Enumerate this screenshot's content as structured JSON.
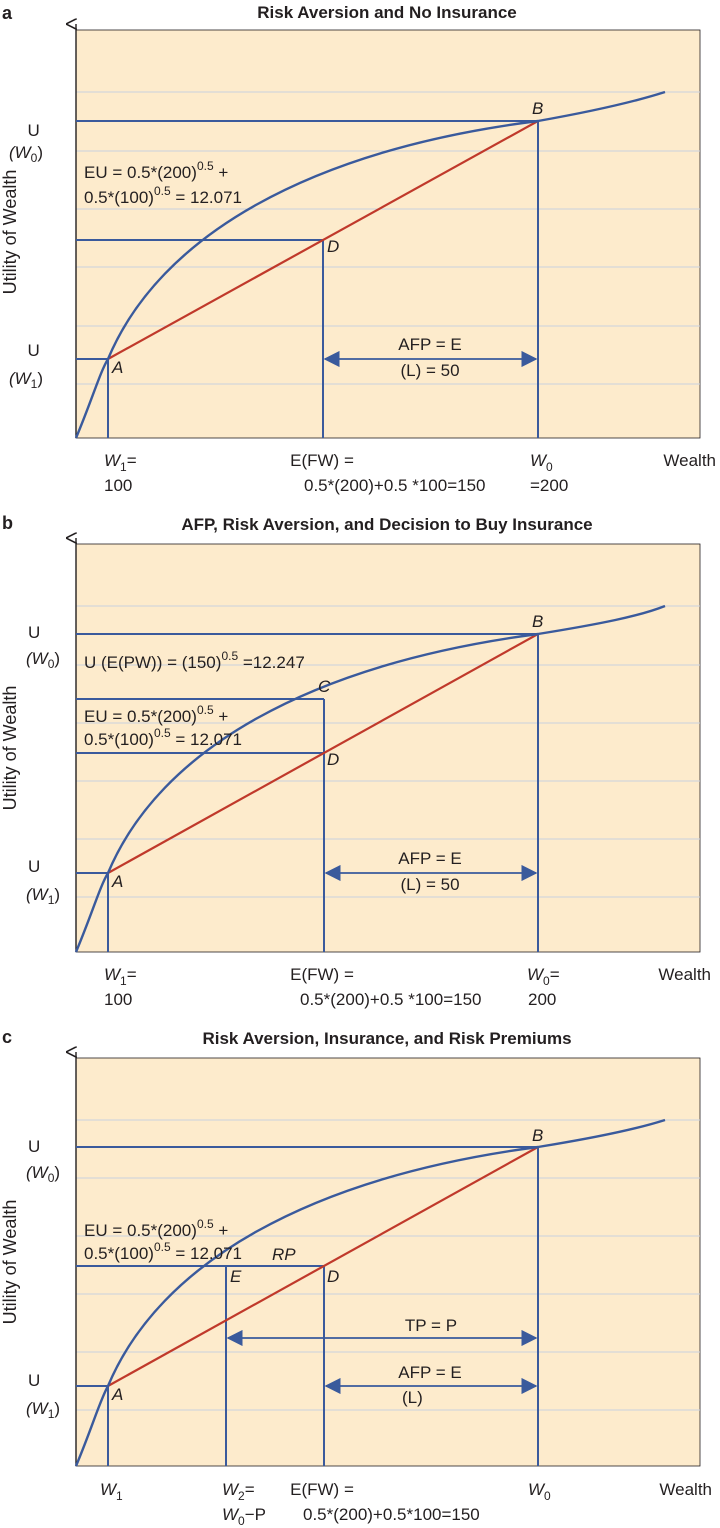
{
  "colors": {
    "background": "#fdebcc",
    "curve": "#3a5a9c",
    "chord": "#c0392b",
    "gridline": "#c9d0de",
    "axis": "#231f20"
  },
  "panels": [
    {
      "letter": "a",
      "title": "Risk Aversion and No Insurance",
      "y_axis_label": "Utility of Wealth",
      "x_axis_label": "Wealth",
      "u_w0": [
        "U",
        "(W",
        "0",
        ")"
      ],
      "u_w1": [
        "U",
        "(W",
        "1",
        ")"
      ],
      "eu_line1": [
        "EU = 0.5*(200)",
        "0.5",
        " +"
      ],
      "eu_line2": [
        "0.5*(100)",
        "0.5",
        " = 12.071"
      ],
      "points": {
        "A": "A",
        "B": "B",
        "D": "D"
      },
      "afp_line1": "AFP = E",
      "afp_line2": "(L) = 50",
      "x_w1_line1": [
        "W",
        "1",
        "="
      ],
      "x_w1_line2": "100",
      "x_efw_line1": "E(FW) =",
      "x_efw_line2": "0.5*(200)+0.5 *100=150",
      "x_w0_line1": [
        "W",
        "0"
      ],
      "x_w0_line2": "=200"
    },
    {
      "letter": "b",
      "title": "AFP, Risk Aversion, and Decision to Buy Insurance",
      "y_axis_label": "Utility of Wealth",
      "x_axis_label": "Wealth",
      "u_w0": [
        "U",
        "(W",
        "0",
        ")"
      ],
      "u_w1": [
        "U",
        "(W",
        "1",
        ")"
      ],
      "uefw": [
        "U (E(PW)) = (150)",
        "0.5",
        " =12.247"
      ],
      "eu_line1": [
        "EU = 0.5*(200)",
        "0.5",
        " +"
      ],
      "eu_line2": [
        "0.5*(100)",
        "0.5",
        " = 12.071"
      ],
      "points": {
        "A": "A",
        "B": "B",
        "C": "C",
        "D": "D"
      },
      "afp_line1": "AFP = E",
      "afp_line2": "(L) = 50",
      "x_w1_line1": [
        "W",
        "1",
        "="
      ],
      "x_w1_line2": "100",
      "x_efw_line1": "E(FW) =",
      "x_efw_line2": "0.5*(200)+0.5 *100=150",
      "x_w0_line1": [
        "W",
        "0",
        "="
      ],
      "x_w0_line2": "200"
    },
    {
      "letter": "c",
      "title": "Risk Aversion, Insurance, and Risk Premiums",
      "y_axis_label": "Utility of Wealth",
      "x_axis_label": "Wealth",
      "u_w0": [
        "U",
        "(W",
        "0",
        ")"
      ],
      "u_w1": [
        "U",
        "(W",
        "1",
        ")"
      ],
      "eu_line1": [
        "EU = 0.5*(200)",
        "0.5",
        " +"
      ],
      "eu_line2": [
        "0.5*(100)",
        "0.5",
        " = 12.071"
      ],
      "rp": "RP",
      "points": {
        "A": "A",
        "B": "B",
        "D": "D",
        "E": "E"
      },
      "tp": "TP = P",
      "afp_line1": "AFP = E",
      "afp_line2": "(L)",
      "x_w1": [
        "W",
        "1"
      ],
      "x_w2_line1": [
        "W",
        "2",
        "="
      ],
      "x_w2_line2": [
        "W",
        "0",
        "−P"
      ],
      "x_efw_line1": "E(FW) =",
      "x_efw_line2": "0.5*(200)+0.5*100=150",
      "x_w0": [
        "W",
        "0"
      ]
    }
  ]
}
